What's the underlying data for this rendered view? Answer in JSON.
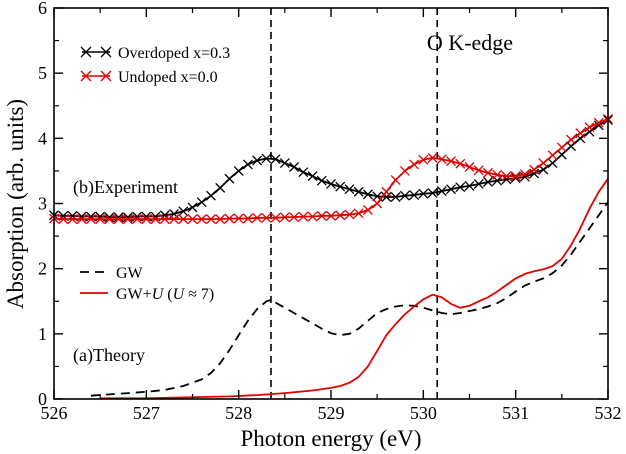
{
  "chart_data": {
    "type": "line",
    "xlabel": "Photon energy (eV)",
    "ylabel": "Absorption (arb. units)",
    "xlim": [
      526,
      532
    ],
    "ylim": [
      0,
      6
    ],
    "x_ticks": [
      "526",
      "527",
      "528",
      "529",
      "530",
      "531",
      "532"
    ],
    "y_ticks": [
      "0",
      "1",
      "2",
      "3",
      "4",
      "5",
      "6"
    ],
    "grid": false,
    "legend_placement": "top-left (experiment) and middle-left (theory)",
    "annotations": {
      "edge_label": "O K-edge",
      "panel_b": "(b)Experiment",
      "panel_a": "(a)Theory",
      "vlines": [
        528.35,
        530.15
      ]
    },
    "legend": [
      {
        "key": "overdoped",
        "text": "Overdoped x=0.3",
        "style": "black-cross"
      },
      {
        "key": "undoped",
        "text": "Undoped x=0.0",
        "style": "red-cross"
      },
      {
        "key": "gw",
        "text": "GW",
        "style": "black-dash"
      },
      {
        "key": "gwu",
        "style": "red-solid",
        "parts": [
          "GW+",
          "U",
          " (",
          "U",
          "  ≈ 7)"
        ]
      }
    ],
    "series": [
      {
        "key": "overdoped",
        "color": "#000000",
        "dash": "",
        "marker": "cross",
        "x": [
          526.0,
          526.1,
          526.2,
          526.3,
          526.4,
          526.5,
          526.6,
          526.7,
          526.8,
          526.9,
          527.0,
          527.1,
          527.2,
          527.3,
          527.4,
          527.5,
          527.6,
          527.7,
          527.8,
          527.9,
          528.0,
          528.1,
          528.2,
          528.3,
          528.4,
          528.5,
          528.6,
          528.7,
          528.8,
          528.9,
          529.0,
          529.1,
          529.2,
          529.3,
          529.4,
          529.5,
          529.6,
          529.7,
          529.8,
          529.9,
          530.0,
          530.1,
          530.2,
          530.3,
          530.4,
          530.5,
          530.6,
          530.7,
          530.8,
          530.9,
          531.0,
          531.1,
          531.2,
          531.3,
          531.4,
          531.5,
          531.6,
          531.7,
          531.8,
          531.9,
          532.0
        ],
        "y": [
          2.82,
          2.81,
          2.81,
          2.8,
          2.8,
          2.8,
          2.79,
          2.79,
          2.79,
          2.8,
          2.8,
          2.8,
          2.82,
          2.84,
          2.88,
          2.94,
          3.02,
          3.12,
          3.24,
          3.38,
          3.5,
          3.6,
          3.66,
          3.69,
          3.68,
          3.62,
          3.56,
          3.48,
          3.42,
          3.35,
          3.3,
          3.26,
          3.22,
          3.18,
          3.14,
          3.11,
          3.1,
          3.1,
          3.12,
          3.13,
          3.15,
          3.16,
          3.19,
          3.22,
          3.25,
          3.27,
          3.3,
          3.33,
          3.35,
          3.37,
          3.39,
          3.41,
          3.46,
          3.52,
          3.62,
          3.75,
          3.88,
          4.0,
          4.1,
          4.2,
          4.28
        ]
      },
      {
        "key": "undoped",
        "color": "#e00000",
        "dash": "",
        "marker": "cross",
        "x": [
          526.0,
          526.1,
          526.2,
          526.3,
          526.4,
          526.5,
          526.6,
          526.7,
          526.8,
          526.9,
          527.0,
          527.1,
          527.2,
          527.3,
          527.4,
          527.5,
          527.6,
          527.7,
          527.8,
          527.9,
          528.0,
          528.1,
          528.2,
          528.3,
          528.4,
          528.5,
          528.6,
          528.7,
          528.8,
          528.9,
          529.0,
          529.1,
          529.2,
          529.3,
          529.4,
          529.5,
          529.6,
          529.7,
          529.8,
          529.9,
          530.0,
          530.1,
          530.2,
          530.3,
          530.4,
          530.5,
          530.6,
          530.7,
          530.8,
          530.9,
          531.0,
          531.1,
          531.2,
          531.3,
          531.4,
          531.5,
          531.6,
          531.7,
          531.8,
          531.9,
          532.0
        ],
        "y": [
          2.77,
          2.76,
          2.76,
          2.76,
          2.76,
          2.76,
          2.76,
          2.76,
          2.76,
          2.76,
          2.76,
          2.76,
          2.76,
          2.76,
          2.76,
          2.76,
          2.76,
          2.76,
          2.76,
          2.77,
          2.77,
          2.77,
          2.78,
          2.78,
          2.78,
          2.79,
          2.79,
          2.8,
          2.8,
          2.81,
          2.81,
          2.82,
          2.83,
          2.85,
          2.9,
          3.0,
          3.18,
          3.36,
          3.5,
          3.6,
          3.67,
          3.7,
          3.68,
          3.65,
          3.61,
          3.56,
          3.51,
          3.47,
          3.44,
          3.42,
          3.42,
          3.45,
          3.52,
          3.62,
          3.74,
          3.86,
          3.98,
          4.08,
          4.17,
          4.24,
          4.3
        ]
      },
      {
        "key": "gw",
        "color": "#000000",
        "dash": "9,6",
        "marker": "",
        "x": [
          526.4,
          526.6,
          526.8,
          527.0,
          527.2,
          527.4,
          527.6,
          527.7,
          527.8,
          527.9,
          528.0,
          528.1,
          528.2,
          528.3,
          528.35,
          528.4,
          528.5,
          528.6,
          528.7,
          528.8,
          528.9,
          529.0,
          529.1,
          529.2,
          529.3,
          529.4,
          529.5,
          529.6,
          529.7,
          529.8,
          529.9,
          530.0,
          530.1,
          530.2,
          530.3,
          530.4,
          530.5,
          530.6,
          530.7,
          530.8,
          530.9,
          531.0,
          531.1,
          531.2,
          531.3,
          531.4,
          531.5,
          531.6,
          531.7,
          531.8,
          531.9,
          532.0
        ],
        "y": [
          0.05,
          0.07,
          0.09,
          0.11,
          0.14,
          0.2,
          0.3,
          0.4,
          0.55,
          0.75,
          0.98,
          1.2,
          1.38,
          1.5,
          1.52,
          1.48,
          1.4,
          1.32,
          1.24,
          1.16,
          1.08,
          1.01,
          0.98,
          1.0,
          1.08,
          1.2,
          1.32,
          1.38,
          1.42,
          1.44,
          1.43,
          1.4,
          1.36,
          1.32,
          1.3,
          1.32,
          1.35,
          1.38,
          1.42,
          1.47,
          1.55,
          1.65,
          1.74,
          1.8,
          1.85,
          1.93,
          2.05,
          2.22,
          2.42,
          2.62,
          2.82,
          3.02
        ]
      },
      {
        "key": "gwu",
        "color": "#e00000",
        "dash": "",
        "marker": "",
        "x": [
          526.5,
          526.8,
          527.0,
          527.3,
          527.6,
          527.9,
          528.2,
          528.5,
          528.8,
          529.0,
          529.1,
          529.2,
          529.3,
          529.4,
          529.5,
          529.6,
          529.7,
          529.8,
          529.9,
          530.0,
          530.1,
          530.2,
          530.3,
          530.4,
          530.5,
          530.6,
          530.7,
          530.8,
          530.9,
          531.0,
          531.1,
          531.2,
          531.3,
          531.4,
          531.5,
          531.6,
          531.7,
          531.8,
          531.9,
          532.0
        ],
        "y": [
          0.01,
          0.01,
          0.01,
          0.02,
          0.03,
          0.04,
          0.06,
          0.09,
          0.13,
          0.17,
          0.2,
          0.25,
          0.34,
          0.5,
          0.74,
          0.98,
          1.15,
          1.3,
          1.42,
          1.53,
          1.6,
          1.56,
          1.46,
          1.4,
          1.43,
          1.5,
          1.56,
          1.65,
          1.75,
          1.85,
          1.92,
          1.96,
          1.99,
          2.04,
          2.15,
          2.36,
          2.62,
          2.92,
          3.18,
          3.38
        ]
      }
    ]
  }
}
